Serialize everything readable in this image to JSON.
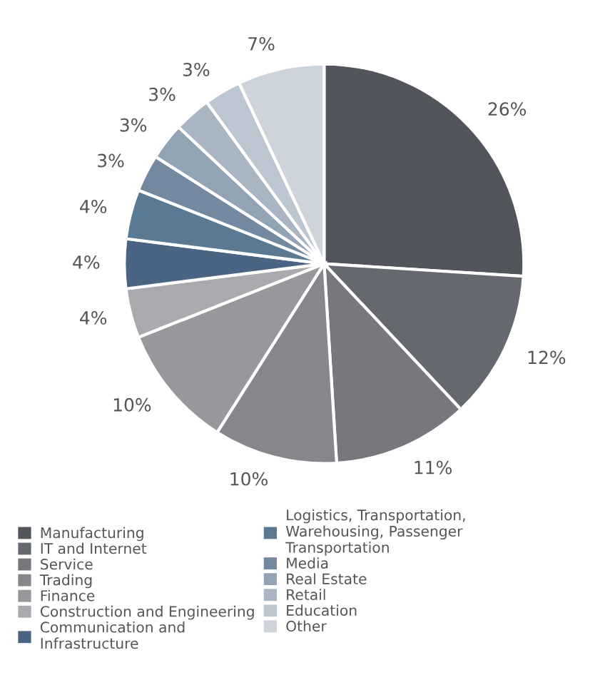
{
  "chart_data": {
    "type": "pie",
    "categories": [
      "Manufacturing",
      "IT and Internet",
      "Service",
      "Trading",
      "Finance",
      "Construction and Engineering",
      "Communication and Infrastructure",
      "Logistics, Transportation, Warehousing, Passenger Transportation",
      "Media",
      "Real Estate",
      "Retail",
      "Education",
      "Other"
    ],
    "values": [
      26,
      12,
      11,
      10,
      10,
      4,
      4,
      4,
      3,
      3,
      3,
      3,
      7
    ],
    "value_labels": [
      "26%",
      "12%",
      "11%",
      "10%",
      "10%",
      "4%",
      "4%",
      "4%",
      "3%",
      "3%",
      "3%",
      "3%",
      "7%"
    ],
    "colors": [
      "#52555b",
      "#65686e",
      "#76787d",
      "#85878b",
      "#96989c",
      "#a9aaad",
      "#4a6584",
      "#5a7a93",
      "#7489a0",
      "#92a3b3",
      "#a9b5c3",
      "#bcc6d0",
      "#cdd3db"
    ],
    "legend": "bottom"
  }
}
